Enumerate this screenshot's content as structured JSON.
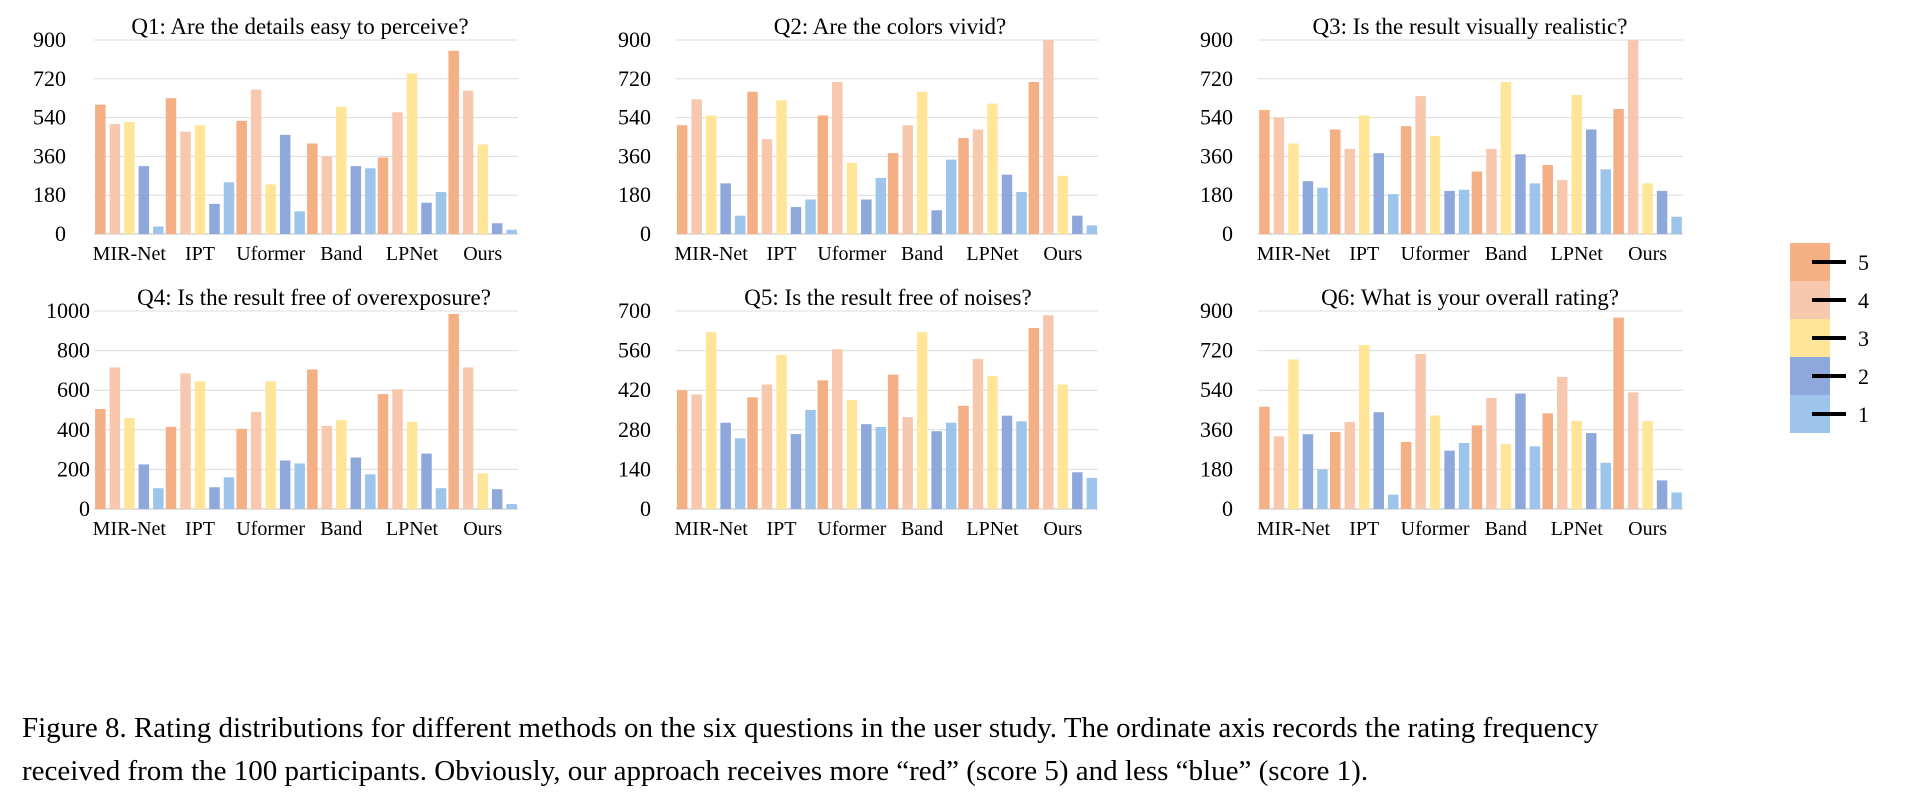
{
  "chart_data": [
    {
      "type": "bar",
      "title": "Q1: Are the details easy to perceive?",
      "categories": [
        "MIR-Net",
        "IPT",
        "Uformer",
        "Band",
        "LPNet",
        "Ours"
      ],
      "yticks": [
        "0",
        "180",
        "360",
        "540",
        "720",
        "900"
      ],
      "ylim": [
        0,
        900
      ],
      "grid": true,
      "series": [
        {
          "name": "5",
          "values": [
            600,
            630,
            525,
            420,
            355,
            850
          ]
        },
        {
          "name": "4",
          "values": [
            510,
            475,
            670,
            360,
            565,
            665
          ]
        },
        {
          "name": "3",
          "values": [
            520,
            505,
            230,
            590,
            745,
            415
          ]
        },
        {
          "name": "2",
          "values": [
            315,
            140,
            460,
            315,
            145,
            50
          ]
        },
        {
          "name": "1",
          "values": [
            35,
            240,
            105,
            305,
            195,
            20
          ]
        }
      ]
    },
    {
      "type": "bar",
      "title": "Q2: Are the colors vivid?",
      "categories": [
        "MIR-Net",
        "IPT",
        "Uformer",
        "Band",
        "LPNet",
        "Ours"
      ],
      "yticks": [
        "0",
        "180",
        "360",
        "540",
        "720",
        "900"
      ],
      "ylim": [
        0,
        900
      ],
      "grid": true,
      "series": [
        {
          "name": "5",
          "values": [
            505,
            660,
            550,
            375,
            445,
            705
          ]
        },
        {
          "name": "4",
          "values": [
            625,
            440,
            705,
            505,
            485,
            900
          ]
        },
        {
          "name": "3",
          "values": [
            550,
            620,
            330,
            660,
            605,
            270
          ]
        },
        {
          "name": "2",
          "values": [
            235,
            125,
            160,
            110,
            275,
            85
          ]
        },
        {
          "name": "1",
          "values": [
            85,
            160,
            260,
            345,
            195,
            40
          ]
        }
      ]
    },
    {
      "type": "bar",
      "title": "Q3: Is the result visually realistic?",
      "categories": [
        "MIR-Net",
        "IPT",
        "Uformer",
        "Band",
        "LPNet",
        "Ours"
      ],
      "yticks": [
        "0",
        "180",
        "360",
        "540",
        "720",
        "900"
      ],
      "ylim": [
        0,
        900
      ],
      "grid": true,
      "series": [
        {
          "name": "5",
          "values": [
            575,
            485,
            500,
            290,
            320,
            580
          ]
        },
        {
          "name": "4",
          "values": [
            540,
            395,
            640,
            395,
            250,
            900
          ]
        },
        {
          "name": "3",
          "values": [
            420,
            550,
            455,
            705,
            645,
            235
          ]
        },
        {
          "name": "2",
          "values": [
            245,
            375,
            200,
            370,
            485,
            200
          ]
        },
        {
          "name": "1",
          "values": [
            215,
            185,
            205,
            235,
            300,
            80
          ]
        }
      ]
    },
    {
      "type": "bar",
      "title": "Q4: Is the result free of overexposure?",
      "categories": [
        "MIR-Net",
        "IPT",
        "Uformer",
        "Band",
        "LPNet",
        "Ours"
      ],
      "yticks": [
        "0",
        "200",
        "400",
        "600",
        "800",
        "1000"
      ],
      "ylim": [
        0,
        1000
      ],
      "grid": true,
      "series": [
        {
          "name": "5",
          "values": [
            505,
            415,
            405,
            705,
            580,
            985
          ]
        },
        {
          "name": "4",
          "values": [
            715,
            685,
            490,
            420,
            605,
            715
          ]
        },
        {
          "name": "3",
          "values": [
            460,
            645,
            645,
            450,
            440,
            180
          ]
        },
        {
          "name": "2",
          "values": [
            225,
            110,
            245,
            260,
            280,
            100
          ]
        },
        {
          "name": "1",
          "values": [
            105,
            160,
            230,
            175,
            105,
            25
          ]
        }
      ]
    },
    {
      "type": "bar",
      "title": "Q5: Is the result free of noises?",
      "categories": [
        "MIR-Net",
        "IPT",
        "Uformer",
        "Band",
        "LPNet",
        "Ours"
      ],
      "yticks": [
        "0",
        "140",
        "280",
        "420",
        "560",
        "700"
      ],
      "ylim": [
        0,
        700
      ],
      "grid": true,
      "series": [
        {
          "name": "5",
          "values": [
            420,
            395,
            455,
            475,
            365,
            640
          ]
        },
        {
          "name": "4",
          "values": [
            405,
            440,
            565,
            325,
            530,
            685
          ]
        },
        {
          "name": "3",
          "values": [
            625,
            545,
            385,
            625,
            470,
            440
          ]
        },
        {
          "name": "2",
          "values": [
            305,
            265,
            300,
            275,
            330,
            130
          ]
        },
        {
          "name": "1",
          "values": [
            250,
            350,
            290,
            305,
            310,
            110
          ]
        }
      ]
    },
    {
      "type": "bar",
      "title": "Q6: What is your overall rating?",
      "categories": [
        "MIR-Net",
        "IPT",
        "Uformer",
        "Band",
        "LPNet",
        "Ours"
      ],
      "yticks": [
        "0",
        "180",
        "360",
        "540",
        "720",
        "900"
      ],
      "ylim": [
        0,
        900
      ],
      "grid": true,
      "series": [
        {
          "name": "5",
          "values": [
            465,
            350,
            305,
            380,
            435,
            870
          ]
        },
        {
          "name": "4",
          "values": [
            330,
            395,
            705,
            505,
            600,
            530
          ]
        },
        {
          "name": "3",
          "values": [
            680,
            745,
            425,
            295,
            400,
            400
          ]
        },
        {
          "name": "2",
          "values": [
            340,
            440,
            265,
            525,
            345,
            130
          ]
        },
        {
          "name": "1",
          "values": [
            180,
            65,
            300,
            285,
            210,
            75
          ]
        }
      ]
    }
  ],
  "legend": {
    "placement": "right",
    "entries": [
      {
        "label": "5",
        "color": "#F4AF85"
      },
      {
        "label": "4",
        "color": "#F8C8AE"
      },
      {
        "label": "3",
        "color": "#FEE597"
      },
      {
        "label": "2",
        "color": "#8FA8DB"
      },
      {
        "label": "1",
        "color": "#9DC4EA"
      }
    ]
  },
  "caption": {
    "line1": "Figure 8. Rating distributions for different methods on the six questions in the user study. The ordinate axis records the rating frequency",
    "line2": "received from the 100 participants. Obviously, our approach receives more “red” (score 5) and less “blue” (score 1)."
  }
}
